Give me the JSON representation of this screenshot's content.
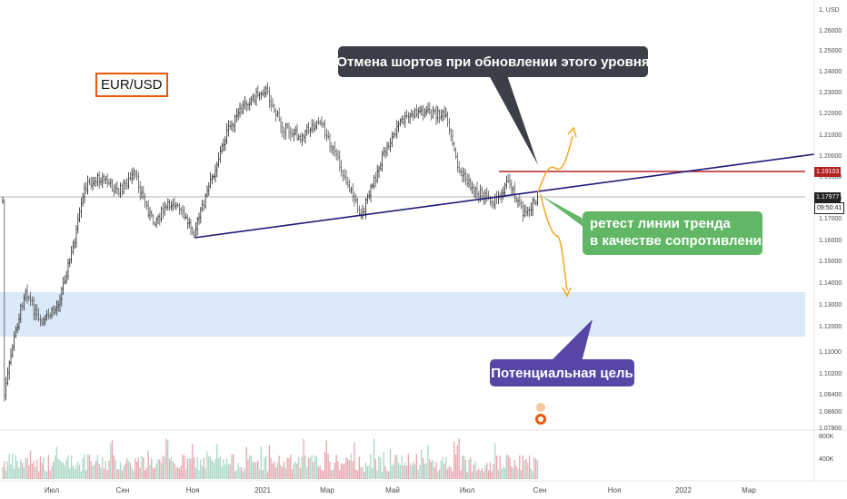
{
  "title": "EUR/USD",
  "annotations": {
    "cancel_shorts": "Отмена шортов при обновлении этого уровня",
    "retest_line1": "ретест линии тренда",
    "retest_line2": "в качестве сопротивления",
    "target": "Потенциальная цель"
  },
  "price_axis": {
    "currency_label": "1, USD",
    "ticks": [
      "1.26000",
      "1.25000",
      "1.24000",
      "1.23000",
      "1.22000",
      "1.21000",
      "1.20000",
      "1.19000",
      "1.18000",
      "1.17000",
      "1.16000",
      "1.15000",
      "1.14000",
      "1.13000",
      "1.12000",
      "1.11000",
      "1.10200",
      "1.09400",
      "1.08600",
      "1.07800"
    ],
    "current_price": "1.17977",
    "countdown": "09:50:41",
    "resistance_price": "1.19103"
  },
  "volume_axis": {
    "ticks": [
      "800K",
      "400K"
    ]
  },
  "x_axis": {
    "ticks": [
      "Июл",
      "Сен",
      "Ноя",
      "2021",
      "Мар",
      "Май",
      "Июл",
      "Сен",
      "Ноя",
      "2022",
      "Мар"
    ]
  },
  "colors": {
    "bull_candle": "#222222",
    "trendline": "#1f1a7a",
    "resistance": "#b22222",
    "zone": "#dbe9f9",
    "projection": "#f5a623",
    "volume_up": "#e8a5ad",
    "volume_down": "#a8d8c4"
  },
  "chart_data": {
    "type": "candlestick",
    "symbol": "EUR/USD",
    "price_range": [
      1.078,
      1.265
    ],
    "current_price": 1.17977,
    "resistance_level": 1.19103,
    "target_zone": [
      1.117,
      1.137
    ],
    "trendline": {
      "from": [
        "Ноя",
        1.161
      ],
      "to": [
        "2022",
        1.199
      ]
    },
    "price_path": [
      [
        "Май",
        1.085
      ],
      [
        "Июн",
        1.13
      ],
      [
        "Июл",
        1.12
      ],
      [
        "Июл",
        1.16
      ],
      [
        "Авг",
        1.195
      ],
      [
        "Сен",
        1.19
      ],
      [
        "Сен",
        1.175
      ],
      [
        "Окт",
        1.18
      ],
      [
        "Ноя",
        1.165
      ],
      [
        "Дек",
        1.215
      ],
      [
        "2021",
        1.23
      ],
      [
        "Фев",
        1.21
      ],
      [
        "Мар",
        1.195
      ],
      [
        "Апр",
        1.17
      ],
      [
        "Май",
        1.21
      ],
      [
        "Июн",
        1.22
      ],
      [
        "Июл",
        1.185
      ],
      [
        "Авг",
        1.175
      ],
      [
        "Авг",
        1.18
      ]
    ],
    "volume_scale": [
      0,
      800000
    ]
  }
}
